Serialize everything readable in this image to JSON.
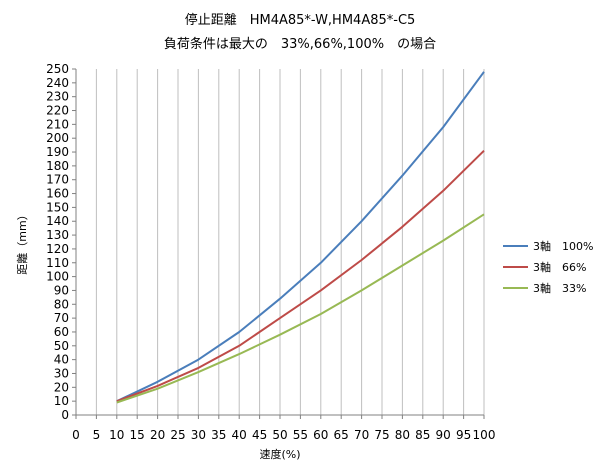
{
  "chart_data": {
    "type": "line",
    "title": [
      "停止距離　HM4A85*-W,HM4A85*-C5",
      "負荷条件は最大の　33%,66%,100%　の場合"
    ],
    "xlabel": "速度(%)",
    "ylabel": "距離（mm）",
    "xlim": [
      0,
      100
    ],
    "ylim": [
      0,
      250
    ],
    "x_ticks": [
      0,
      5,
      10,
      15,
      20,
      25,
      30,
      35,
      40,
      45,
      50,
      55,
      60,
      65,
      70,
      75,
      80,
      85,
      90,
      95,
      100
    ],
    "y_ticks": [
      0,
      10,
      20,
      30,
      40,
      50,
      60,
      70,
      80,
      90,
      100,
      110,
      120,
      130,
      140,
      150,
      160,
      170,
      180,
      190,
      200,
      210,
      220,
      230,
      240,
      250
    ],
    "grid": "vertical",
    "legend_position": "right",
    "x": [
      10,
      20,
      30,
      40,
      50,
      60,
      70,
      80,
      90,
      100
    ],
    "series": [
      {
        "name": "3軸　100%",
        "color": "#4A7EBB",
        "values": [
          10,
          24,
          40,
          60,
          84,
          110,
          140,
          173,
          208,
          248
        ]
      },
      {
        "name": "3軸　66%",
        "color": "#BE4B48",
        "values": [
          10,
          21,
          34,
          50,
          70,
          90,
          112,
          136,
          162,
          191
        ]
      },
      {
        "name": "3軸　33%",
        "color": "#98B954",
        "values": [
          9,
          19,
          31,
          44,
          58,
          73,
          90,
          108,
          126,
          145
        ]
      }
    ]
  }
}
